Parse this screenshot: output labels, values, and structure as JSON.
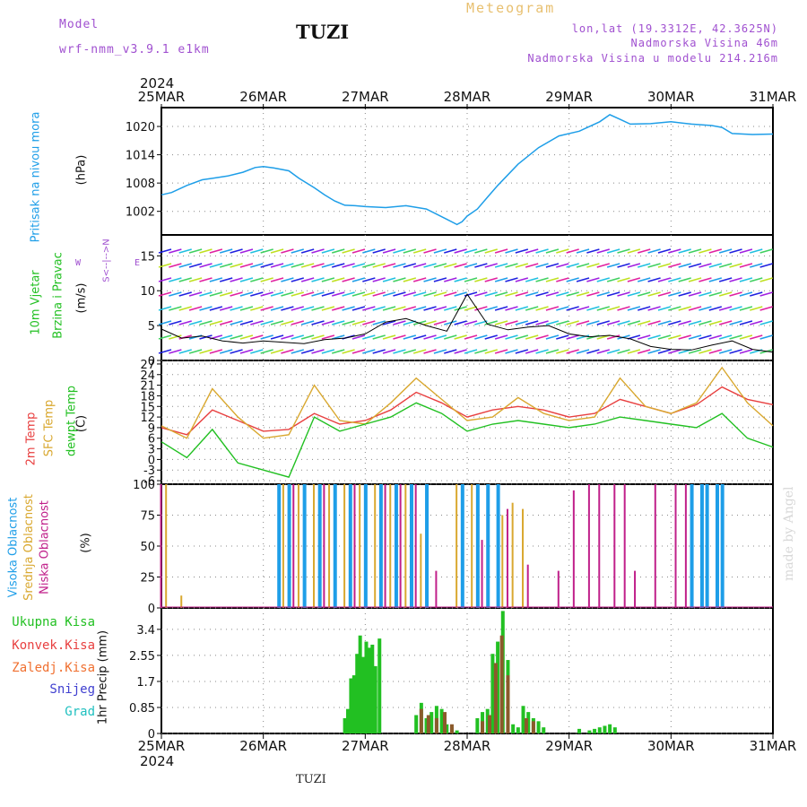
{
  "header": {
    "model_label": "Model",
    "model_name": "wrf-nmm_v3.9.1 e1km",
    "station": "TUZI",
    "meteogram_label": "Meteogram",
    "lonlat": "lon,lat (19.3312E, 42.3625N)",
    "elevation": "Nadmorska Visina 46m",
    "model_elevation": "Nadmorska Visina u modelu 214.216m",
    "footer_station": "TUZI",
    "watermark": "made by Angel"
  },
  "time_axis": {
    "year": "2024",
    "dates": [
      "25MAR",
      "26MAR",
      "27MAR",
      "28MAR",
      "29MAR",
      "30MAR",
      "31MAR"
    ]
  },
  "panel_labels": {
    "pressure": {
      "title": "Pritisak na nivou mora",
      "unit": "(hPa)"
    },
    "wind": {
      "title1": "10m Vjetar",
      "title2": "Brzina i Pravac",
      "unit": "(m/s)",
      "compass_ns": "S<--|-->N",
      "compass_w": "W",
      "compass_e": "E"
    },
    "temp": {
      "t2m": "2m Temp",
      "sfc": "SFC Temp",
      "dew": "dewpt Temp",
      "unit": "(C)"
    },
    "cloud": {
      "high": "Visoka Oblacnost",
      "mid": "Srednja Oblacnost",
      "low": "Niska Oblacnost",
      "unit": "(%)"
    },
    "precip": {
      "total": "Ukupna Kisa",
      "conv": "Konvek.Kisa",
      "frz": "Zaledj.Kisa",
      "snow": "Snijeg",
      "hail": "Grad",
      "unit": "1hr Precip (mm)"
    }
  },
  "colors": {
    "pressure": "#1e9ee8",
    "t2m": "#e84040",
    "sfc": "#d9a830",
    "dew": "#22c022",
    "high": "#1e9ee8",
    "mid": "#d9a830",
    "low": "#c0208a",
    "precip_total": "#22c022",
    "precip_conv": "#8b5a2b",
    "purple": "#a050d0",
    "gold": "#e8c070"
  },
  "chart_data": [
    {
      "type": "line",
      "name": "pressure",
      "x": [
        0,
        0.1,
        0.25,
        0.4,
        0.5,
        0.65,
        0.8,
        0.92,
        1.0,
        1.1,
        1.25,
        1.35,
        1.5,
        1.6,
        1.7,
        1.8,
        1.9,
        2.0,
        2.2,
        2.4,
        2.6,
        2.8,
        2.9,
        2.95,
        3.0,
        3.1,
        3.2,
        3.3,
        3.5,
        3.7,
        3.9,
        4.1,
        4.3,
        4.4,
        4.5,
        4.6,
        4.8,
        5.0,
        5.2,
        5.4,
        5.5,
        5.6,
        5.8,
        6.0
      ],
      "values": [
        1005.5,
        1006,
        1007.5,
        1008.7,
        1009,
        1009.5,
        1010.3,
        1011.3,
        1011.5,
        1011.2,
        1010.6,
        1009,
        1007,
        1005.5,
        1004.2,
        1003.3,
        1003.2,
        1003,
        1002.8,
        1003.2,
        1002.5,
        1000.3,
        999.2,
        999.8,
        1001,
        1002.5,
        1005,
        1007.5,
        1012,
        1015.5,
        1018,
        1019,
        1021,
        1022.5,
        1021.5,
        1020.5,
        1020.6,
        1021,
        1020.5,
        1020.2,
        1019.8,
        1018.5,
        1018.3,
        1018.4
      ],
      "ylim": [
        997,
        1024
      ],
      "yticks": [
        1002,
        1008,
        1014,
        1020
      ]
    },
    {
      "type": "line",
      "name": "wind",
      "ylim": [
        0,
        18
      ],
      "yticks": [
        0,
        5,
        10,
        15
      ],
      "x": [
        0,
        0.2,
        0.4,
        0.6,
        0.8,
        1.0,
        1.2,
        1.4,
        1.6,
        1.8,
        2.0,
        2.2,
        2.4,
        2.6,
        2.8,
        3.0,
        3.2,
        3.4,
        3.6,
        3.8,
        4.0,
        4.2,
        4.4,
        4.6,
        4.8,
        5.0,
        5.2,
        5.4,
        5.6,
        5.8,
        6.0
      ],
      "values": [
        4.5,
        3.2,
        3.5,
        2.8,
        2.5,
        2.8,
        2.6,
        2.4,
        3.0,
        3.2,
        3.8,
        5.5,
        6.0,
        5.0,
        4.2,
        9.5,
        5.2,
        4.4,
        4.8,
        5.0,
        3.8,
        3.4,
        3.6,
        3.1,
        2.0,
        1.6,
        1.5,
        2.2,
        2.8,
        1.6,
        1.2
      ]
    },
    {
      "type": "line",
      "name": "temperature",
      "ylim": [
        -7,
        28
      ],
      "yticks": [
        -6,
        -3,
        0,
        3,
        6,
        9,
        12,
        15,
        18,
        21,
        24,
        27
      ],
      "x": [
        0,
        0.25,
        0.5,
        0.75,
        1.0,
        1.25,
        1.5,
        1.75,
        2.0,
        2.25,
        2.5,
        2.75,
        3.0,
        3.25,
        3.5,
        3.75,
        4.0,
        4.25,
        4.5,
        4.75,
        5.0,
        5.25,
        5.5,
        5.75,
        6.0
      ],
      "series": [
        {
          "name": "2m Temp",
          "values": [
            9,
            7,
            14,
            11,
            8,
            8.5,
            13,
            10,
            11,
            14,
            19,
            16,
            12,
            14,
            15,
            14,
            12,
            13,
            17,
            15,
            13,
            15.5,
            20.5,
            17,
            15.5
          ]
        },
        {
          "name": "SFC Temp",
          "values": [
            9.5,
            6,
            20,
            12,
            6,
            7,
            21,
            11,
            10,
            16,
            23,
            17,
            11,
            12,
            17.5,
            13,
            11,
            12,
            23,
            15,
            13,
            16,
            26,
            16,
            9.5
          ]
        },
        {
          "name": "dewpt Temp",
          "values": [
            5,
            0.5,
            8.5,
            -1,
            -3,
            -5,
            12,
            8,
            10,
            12,
            16,
            13,
            8,
            10,
            11,
            10,
            9,
            10,
            12,
            11,
            10,
            9,
            13,
            6,
            3.5
          ]
        }
      ]
    },
    {
      "type": "bar",
      "name": "cloud",
      "ylim": [
        0,
        100
      ],
      "yticks": [
        0,
        25,
        50,
        75,
        100
      ],
      "series": [
        {
          "name": "Visoka Oblacnost",
          "x": [
            1.15,
            1.25,
            1.4,
            1.55,
            1.7,
            1.85,
            2.0,
            2.15,
            2.3,
            2.45,
            2.6,
            2.95,
            3.1,
            3.2,
            3.3,
            5.2,
            5.3,
            5.35,
            5.45,
            5.5
          ],
          "values": [
            100,
            100,
            100,
            100,
            100,
            100,
            100,
            100,
            100,
            100,
            100,
            100,
            100,
            100,
            100,
            100,
            100,
            100,
            100,
            100
          ]
        },
        {
          "name": "Srednja Oblacnost",
          "x": [
            0.05,
            0.2,
            1.2,
            1.35,
            1.5,
            1.65,
            1.8,
            1.95,
            2.1,
            2.25,
            2.4,
            2.55,
            2.9,
            3.05,
            3.35,
            3.45,
            3.55
          ],
          "values": [
            100,
            10,
            100,
            100,
            100,
            100,
            100,
            100,
            100,
            100,
            100,
            60,
            100,
            100,
            75,
            85,
            80
          ]
        },
        {
          "name": "Niska Oblacnost",
          "x": [
            0.0,
            1.3,
            1.6,
            1.9,
            2.2,
            2.35,
            2.5,
            2.7,
            3.15,
            3.4,
            3.6,
            3.9,
            4.05,
            4.2,
            4.3,
            4.45,
            4.55,
            4.65,
            4.85,
            5.05,
            5.15
          ],
          "values": [
            100,
            100,
            100,
            100,
            100,
            100,
            100,
            30,
            55,
            80,
            35,
            30,
            95,
            100,
            100,
            100,
            100,
            30,
            100,
            100,
            100
          ]
        }
      ]
    },
    {
      "type": "bar",
      "name": "precipitation",
      "ylim": [
        0,
        4.1
      ],
      "yticks": [
        0,
        0.85,
        1.7,
        2.55,
        3.4
      ],
      "series": [
        {
          "name": "Ukupna Kisa",
          "x": [
            1.8,
            1.83,
            1.86,
            1.89,
            1.92,
            1.95,
            1.98,
            2.01,
            2.04,
            2.07,
            2.1,
            2.14,
            2.5,
            2.55,
            2.6,
            2.65,
            2.7,
            2.75,
            2.8,
            2.85,
            2.9,
            3.1,
            3.15,
            3.2,
            3.25,
            3.3,
            3.35,
            3.4,
            3.45,
            3.5,
            3.55,
            3.6,
            3.65,
            3.7,
            3.75,
            4.1,
            4.2,
            4.25,
            4.3,
            4.35,
            4.4,
            4.45
          ],
          "values": [
            0.5,
            0.8,
            1.8,
            1.9,
            2.6,
            3.2,
            2.5,
            3.0,
            2.8,
            2.9,
            2.2,
            3.1,
            0.6,
            1.0,
            0.5,
            0.7,
            0.9,
            0.8,
            0.3,
            0.2,
            0.1,
            0.5,
            0.7,
            0.8,
            2.6,
            3.0,
            4.0,
            2.4,
            0.3,
            0.2,
            0.9,
            0.7,
            0.5,
            0.4,
            0.2,
            0.15,
            0.1,
            0.15,
            0.2,
            0.25,
            0.3,
            0.2
          ]
        },
        {
          "name": "Konvek.Kisa",
          "x": [
            2.55,
            2.62,
            2.7,
            2.78,
            2.85,
            3.15,
            3.22,
            3.28,
            3.34,
            3.4,
            3.58,
            3.65
          ],
          "values": [
            0.8,
            0.6,
            0.5,
            0.7,
            0.3,
            0.4,
            0.6,
            2.3,
            3.2,
            1.9,
            0.5,
            0.4
          ]
        }
      ]
    }
  ]
}
